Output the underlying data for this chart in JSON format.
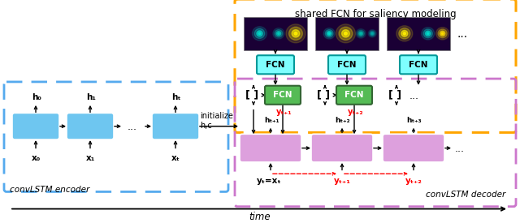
{
  "fig_width": 6.4,
  "fig_height": 2.75,
  "encoder_box_color": "#6EC6F0",
  "decoder_box_color": "#DDA0DD",
  "fcn_top_color": "#7FFFFF",
  "fcn_mid_color": "#55BB55",
  "encoder_border_color": "#55AAEE",
  "decoder_border_color": "#CC77CC",
  "orange_border_color": "#FFA500",
  "time_label": "time",
  "encoder_label": "convLSTM encoder",
  "decoder_label": "convLSTM decoder",
  "fcn_shared_label": "shared FCN for saliency modeling",
  "initialize_label": "initialize\nh,c",
  "enc_h_labels": [
    "h₀",
    "h₁",
    "hₜ"
  ],
  "enc_x_labels": [
    "x₀",
    "x₁",
    "xₜ"
  ],
  "dec_h_labels": [
    "hₜ₊₁",
    "hₜ₊₂",
    "hₜ₊₃"
  ],
  "dec_y_bot_labels": [
    "yₜ₊₁",
    "yₜ₊₂"
  ],
  "dec_y_mid_labels": [
    "yₜ₊₁",
    "yₜ₊₂"
  ],
  "dec_input_label": "yₜ=xₜ"
}
